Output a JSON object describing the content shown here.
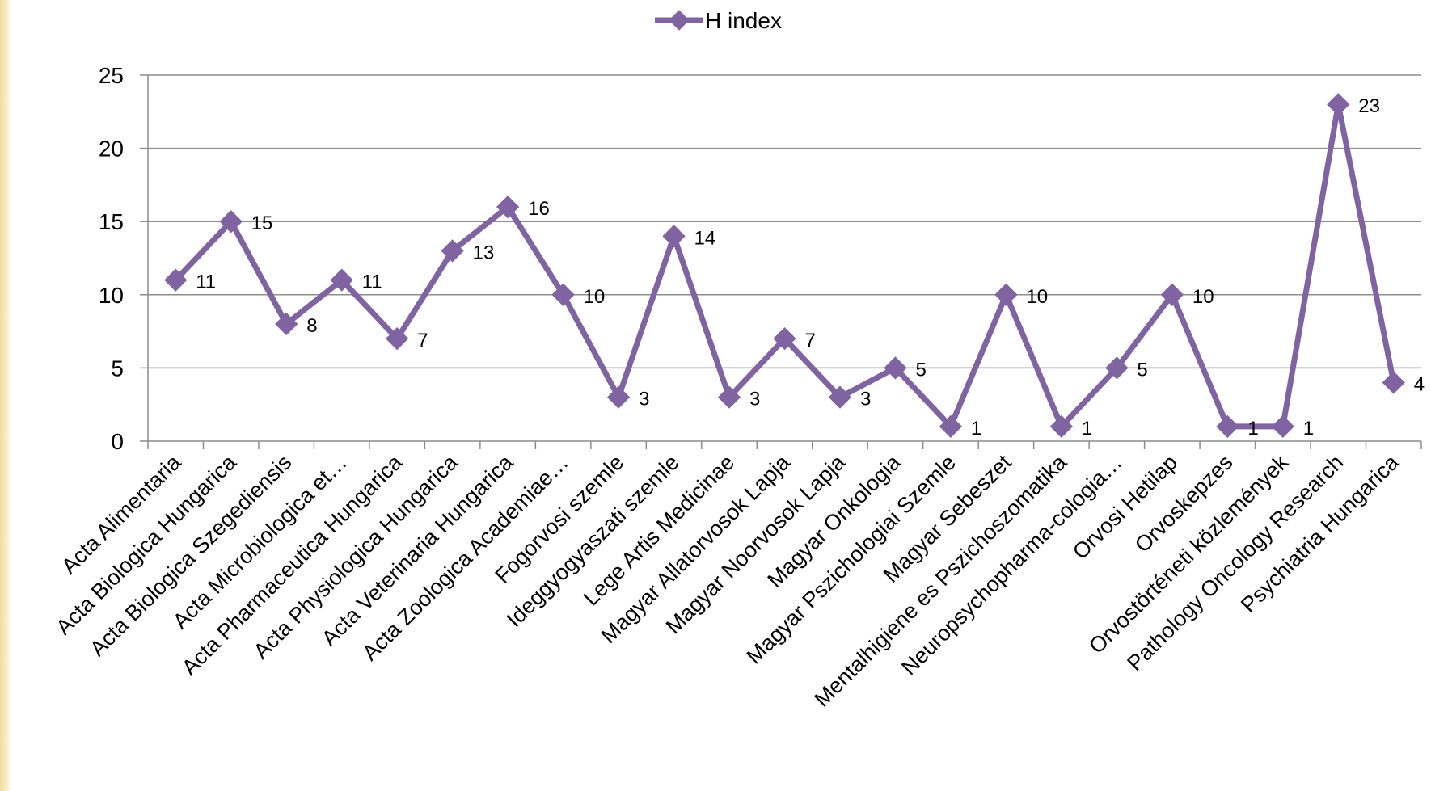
{
  "chart_data": {
    "type": "line",
    "categories": [
      "Acta Alimentaria",
      "Acta Biologica Hungarica",
      "Acta Biologica Szegediensis",
      "Acta Microbiologica et…",
      "Acta Pharmaceutica Hungarica",
      "Acta Physiologica Hungarica",
      "Acta Veterinaria Hungarica",
      "Acta Zoologica Academiae…",
      "Fogorvosi szemle",
      "Ideggyogyaszati szemle",
      "Lege Artis Medicinae",
      "Magyar Allatorvosok Lapja",
      "Magyar Noorvosok Lapja",
      "Magyar Onkologia",
      "Magyar Pszichologiai Szemle",
      "Magyar Sebeszet",
      "Mentalhigiene es Pszichoszomatika",
      "Neuropsychopharma-cologia…",
      "Orvosi Hetilap",
      "Orvoskepzes",
      "Orvostörténeti közlemények",
      "Pathology Oncology Research",
      "Psychiatria Hungarica"
    ],
    "series": [
      {
        "name": "H index",
        "color": "#8064a2",
        "values": [
          11,
          15,
          8,
          11,
          7,
          13,
          16,
          10,
          3,
          14,
          3,
          7,
          3,
          5,
          1,
          10,
          1,
          5,
          10,
          1,
          1,
          23,
          4
        ]
      }
    ],
    "yticks": [
      "0",
      "5",
      "10",
      "15",
      "20",
      "25"
    ],
    "ylim": [
      0,
      25
    ],
    "legend_position": "top",
    "grid": true
  }
}
